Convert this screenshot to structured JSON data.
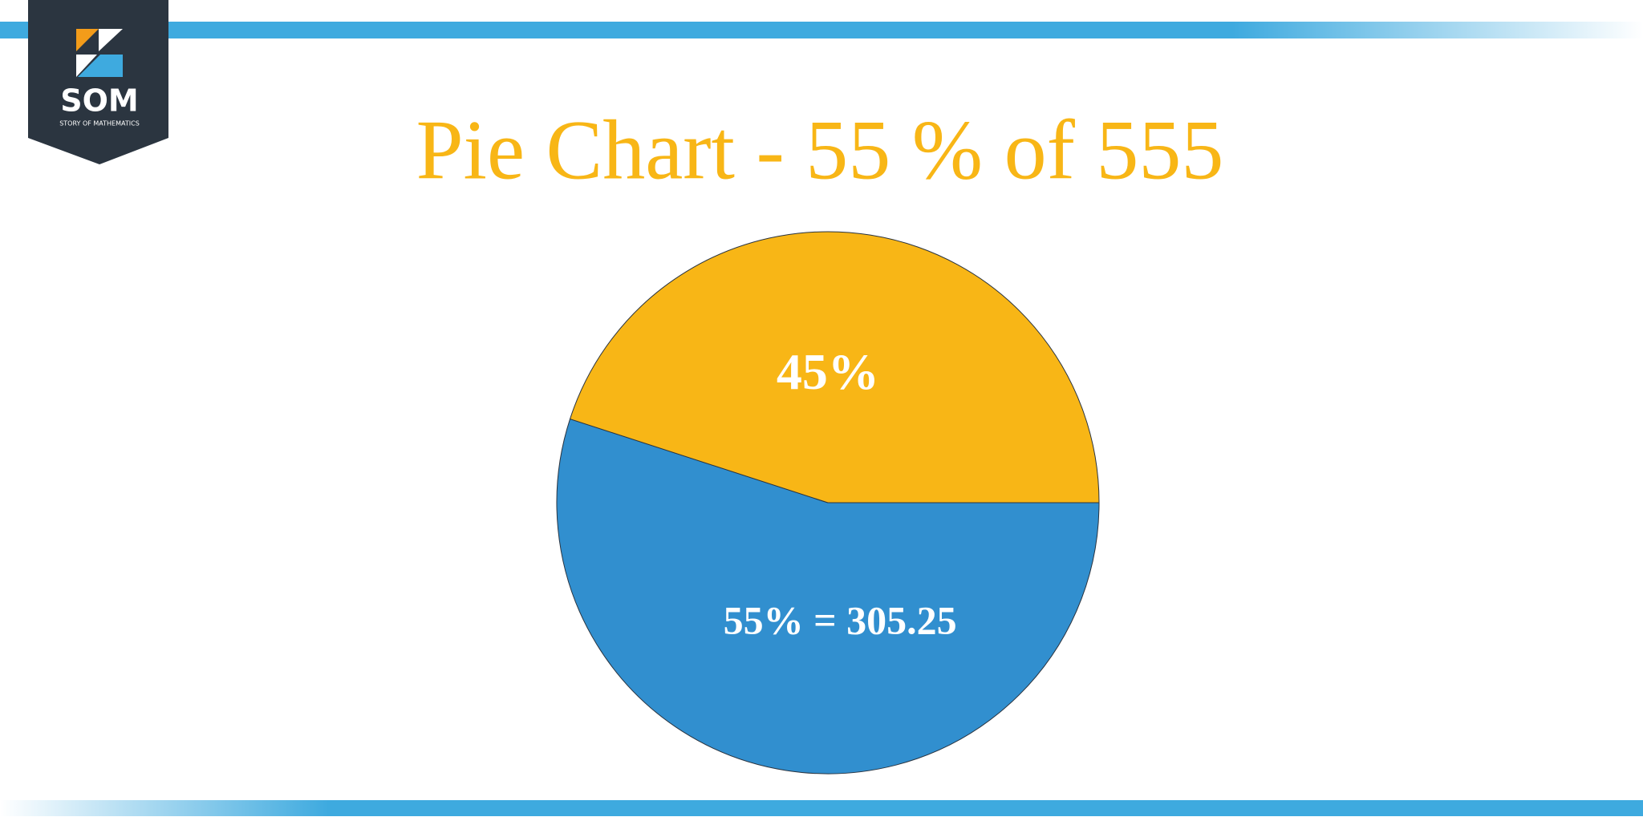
{
  "logo": {
    "text": "SOM",
    "subtext": "STORY OF MATHEMATICS"
  },
  "chart_data": {
    "type": "pie",
    "title": "Pie Chart - 55 % of 555",
    "values": [
      55,
      45
    ],
    "value_labels": [
      "55% = 305.25",
      "45%"
    ],
    "colors": [
      "#318fcf",
      "#f8b616"
    ]
  }
}
